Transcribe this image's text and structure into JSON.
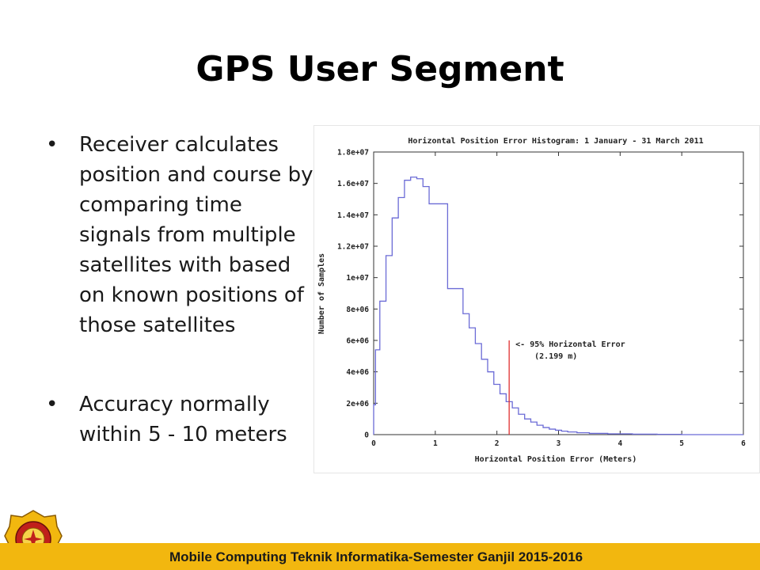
{
  "slide": {
    "title": "GPS User Segment",
    "bullets": [
      "Receiver calculates position and course by comparing time signals from multiple satellites with based on known positions of those satellites",
      "Accuracy normally within 5 - 10 meters"
    ],
    "footer": "Mobile Computing Teknik Informatika-Semester Ganjil 2015-2016"
  },
  "colors": {
    "footer_bar": "#f2b70f",
    "histogram": "#6b6bd6",
    "marker": "#e03030"
  },
  "chart_data": {
    "type": "histogram",
    "title": "Horizontal Position Error Histogram: 1 January - 31 March 2011",
    "xlabel": "Horizontal Position Error (Meters)",
    "ylabel": "Number of Samples",
    "xlim": [
      0,
      6
    ],
    "ylim": [
      0,
      18000000
    ],
    "xticks": [
      0,
      1,
      2,
      3,
      4,
      5,
      6
    ],
    "ytick_values": [
      0,
      2000000,
      4000000,
      6000000,
      8000000,
      10000000,
      12000000,
      14000000,
      16000000,
      18000000
    ],
    "ytick_labels": [
      "0",
      "2e+06",
      "4e+06",
      "6e+06",
      "8e+06",
      "1e+07",
      "1.2e+07",
      "1.4e+07",
      "1.6e+07",
      "1.8e+07"
    ],
    "bin_edges": [
      0,
      0.03,
      0.1,
      0.2,
      0.3,
      0.4,
      0.5,
      0.6,
      0.7,
      0.8,
      0.9,
      1.0,
      1.2,
      1.45,
      1.55,
      1.65,
      1.75,
      1.85,
      1.95,
      2.05,
      2.15,
      2.25,
      2.35,
      2.45,
      2.55,
      2.65,
      2.75,
      2.85,
      2.95,
      3.05,
      3.15,
      3.3,
      3.5,
      3.8,
      4.2,
      4.6,
      5.0,
      6.0
    ],
    "counts": [
      1900000,
      5400000,
      8500000,
      11400000,
      13800000,
      15100000,
      16200000,
      16400000,
      16300000,
      15800000,
      14700000,
      14700000,
      9300000,
      7700000,
      6800000,
      5800000,
      4800000,
      4000000,
      3200000,
      2600000,
      2100000,
      1700000,
      1300000,
      1000000,
      800000,
      600000,
      450000,
      350000,
      280000,
      220000,
      170000,
      120000,
      80000,
      50000,
      30000,
      20000,
      0
    ],
    "marker": {
      "x": 2.199,
      "y_top": 6000000
    },
    "annotation": [
      "<- 95% Horizontal Error",
      "(2.199 m)"
    ]
  }
}
